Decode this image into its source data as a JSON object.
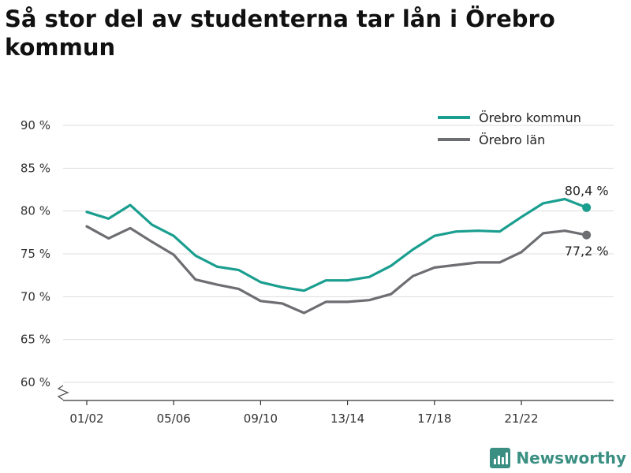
{
  "title": "Så stor del av studenterna tar lån i Örebro kommun",
  "brand": {
    "name": "Newsworthy",
    "icon": "newsworthy-logo-icon",
    "color": "#3a8f82"
  },
  "chart_data": {
    "type": "line",
    "ylim": [
      60,
      90
    ],
    "y_ticks": [
      {
        "value": 60,
        "label": "60 %"
      },
      {
        "value": 65,
        "label": "65 %"
      },
      {
        "value": 70,
        "label": "70 %"
      },
      {
        "value": 75,
        "label": "75 %"
      },
      {
        "value": 80,
        "label": "80 %"
      },
      {
        "value": 85,
        "label": "85 %"
      },
      {
        "value": 90,
        "label": "90 %"
      }
    ],
    "x_ticks": [
      {
        "index": 0,
        "label": "01/02"
      },
      {
        "index": 4,
        "label": "05/06"
      },
      {
        "index": 8,
        "label": "09/10"
      },
      {
        "index": 12,
        "label": "13/14"
      },
      {
        "index": 16,
        "label": "17/18"
      },
      {
        "index": 20,
        "label": "21/22"
      }
    ],
    "y_axis_break": true,
    "grid": "horizontal",
    "legend_position": "top-right",
    "series": [
      {
        "name": "Örebro kommun",
        "color": "#1a9e8f",
        "end_label": "80,4 %",
        "values": [
          79.9,
          79.1,
          80.7,
          78.4,
          77.1,
          74.8,
          73.5,
          73.1,
          71.7,
          71.1,
          70.7,
          71.9,
          71.9,
          72.3,
          73.6,
          75.5,
          77.1,
          77.6,
          77.7,
          77.6,
          79.3,
          80.9,
          81.4,
          80.4
        ]
      },
      {
        "name": "Örebro län",
        "color": "#6d6e72",
        "end_label": "77,2 %",
        "values": [
          78.2,
          76.8,
          78.0,
          76.4,
          74.9,
          72.0,
          71.4,
          70.9,
          69.5,
          69.2,
          68.1,
          69.4,
          69.4,
          69.6,
          70.3,
          72.4,
          73.4,
          73.7,
          74.0,
          74.0,
          75.2,
          77.4,
          77.7,
          77.2
        ]
      }
    ]
  }
}
